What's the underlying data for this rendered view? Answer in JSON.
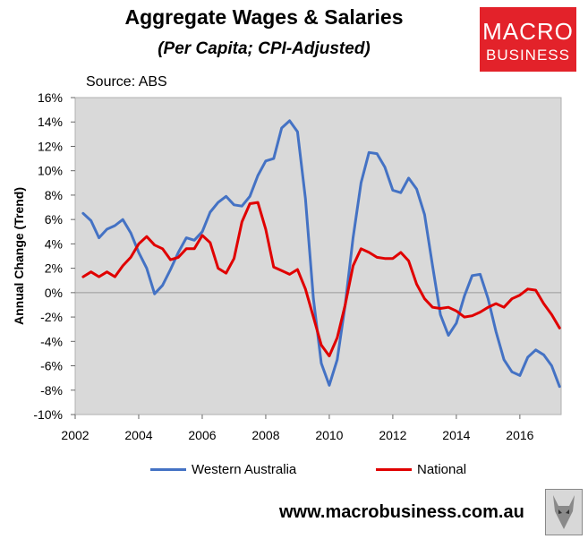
{
  "title": "Aggregate Wages & Salaries",
  "subtitle": "(Per Capita; CPI-Adjusted)",
  "source": "Source: ABS",
  "logo": {
    "line1": "MACRO",
    "line2": "BUSINESS",
    "color": "#e3222a"
  },
  "website": "www.macrobusiness.com.au",
  "chart_data": {
    "type": "line",
    "ylabel": "Annual Change (Trend)",
    "xlabel": "",
    "xlim": [
      2002,
      2017.3
    ],
    "ylim": [
      -10,
      16
    ],
    "x_ticks": [
      "2002",
      "2004",
      "2006",
      "2008",
      "2010",
      "2012",
      "2014",
      "2016"
    ],
    "y_ticks": [
      "16%",
      "14%",
      "12%",
      "10%",
      "8%",
      "6%",
      "4%",
      "2%",
      "0%",
      "-2%",
      "-4%",
      "-6%",
      "-8%",
      "-10%"
    ],
    "legend_position": "bottom",
    "plot_background": "#d9d9d9",
    "series": [
      {
        "name": "Western Australia",
        "color": "#4472c4",
        "x": [
          2002.25,
          2002.5,
          2002.75,
          2003.0,
          2003.25,
          2003.5,
          2003.75,
          2004.0,
          2004.25,
          2004.5,
          2004.75,
          2005.0,
          2005.25,
          2005.5,
          2005.75,
          2006.0,
          2006.25,
          2006.5,
          2006.75,
          2007.0,
          2007.25,
          2007.5,
          2007.75,
          2008.0,
          2008.25,
          2008.5,
          2008.75,
          2009.0,
          2009.25,
          2009.5,
          2009.75,
          2010.0,
          2010.25,
          2010.5,
          2010.75,
          2011.0,
          2011.25,
          2011.5,
          2011.75,
          2012.0,
          2012.25,
          2012.5,
          2012.75,
          2013.0,
          2013.25,
          2013.5,
          2013.75,
          2014.0,
          2014.25,
          2014.5,
          2014.75,
          2015.0,
          2015.25,
          2015.5,
          2015.75,
          2016.0,
          2016.25,
          2016.5,
          2016.75,
          2017.0,
          2017.25
        ],
        "y": [
          6.5,
          5.9,
          4.5,
          5.2,
          5.5,
          6.0,
          4.9,
          3.3,
          2.0,
          -0.1,
          0.6,
          1.9,
          3.3,
          4.5,
          4.3,
          5.0,
          6.6,
          7.4,
          7.9,
          7.2,
          7.1,
          7.9,
          9.6,
          10.8,
          11.0,
          13.5,
          14.1,
          13.2,
          7.7,
          -0.5,
          -5.8,
          -7.6,
          -5.5,
          -1.0,
          4.5,
          9.0,
          11.5,
          11.4,
          10.3,
          8.4,
          8.2,
          9.4,
          8.5,
          6.4,
          2.2,
          -1.8,
          -3.5,
          -2.5,
          -0.3,
          1.4,
          1.5,
          -0.5,
          -3.2,
          -5.5,
          -6.5,
          -6.8,
          -5.3,
          -4.7,
          -5.1,
          -6.0,
          -7.7
        ]
      },
      {
        "name": "National",
        "color": "#e00000",
        "x": [
          2002.25,
          2002.5,
          2002.75,
          2003.0,
          2003.25,
          2003.5,
          2003.75,
          2004.0,
          2004.25,
          2004.5,
          2004.75,
          2005.0,
          2005.25,
          2005.5,
          2005.75,
          2006.0,
          2006.25,
          2006.5,
          2006.75,
          2007.0,
          2007.25,
          2007.5,
          2007.75,
          2008.0,
          2008.25,
          2008.5,
          2008.75,
          2009.0,
          2009.25,
          2009.5,
          2009.75,
          2010.0,
          2010.25,
          2010.5,
          2010.75,
          2011.0,
          2011.25,
          2011.5,
          2011.75,
          2012.0,
          2012.25,
          2012.5,
          2012.75,
          2013.0,
          2013.25,
          2013.5,
          2013.75,
          2014.0,
          2014.25,
          2014.5,
          2014.75,
          2015.0,
          2015.25,
          2015.5,
          2015.75,
          2016.0,
          2016.25,
          2016.5,
          2016.75,
          2017.0,
          2017.25
        ],
        "y": [
          1.3,
          1.7,
          1.3,
          1.7,
          1.3,
          2.2,
          2.9,
          4.0,
          4.6,
          3.9,
          3.6,
          2.7,
          2.9,
          3.6,
          3.6,
          4.7,
          4.1,
          2.0,
          1.6,
          2.8,
          5.8,
          7.3,
          7.4,
          5.2,
          2.1,
          1.8,
          1.5,
          1.9,
          0.3,
          -2.0,
          -4.3,
          -5.2,
          -3.7,
          -1.0,
          2.2,
          3.6,
          3.3,
          2.9,
          2.8,
          2.8,
          3.3,
          2.6,
          0.7,
          -0.5,
          -1.2,
          -1.3,
          -1.2,
          -1.5,
          -2.0,
          -1.9,
          -1.6,
          -1.2,
          -0.9,
          -1.2,
          -0.5,
          -0.2,
          0.3,
          0.2,
          -0.9,
          -1.8,
          -2.9
        ]
      }
    ]
  }
}
